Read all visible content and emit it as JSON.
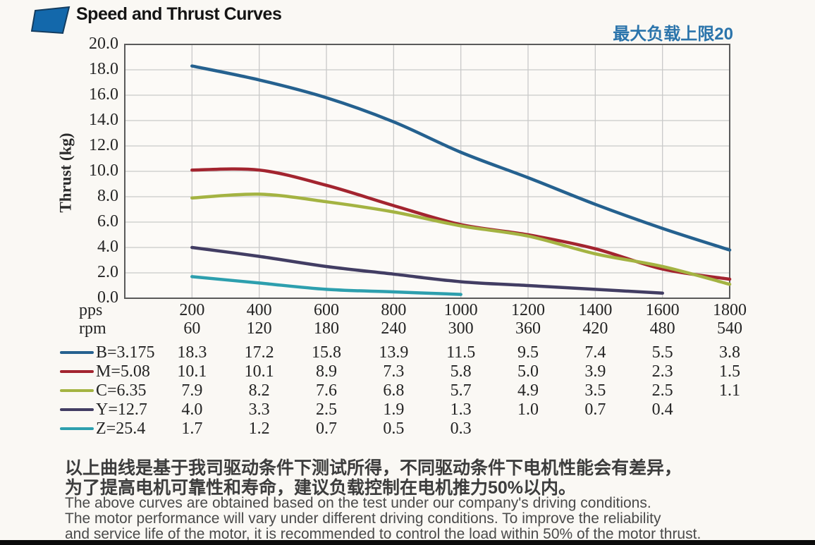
{
  "header": {
    "title": "Speed and Thrust Curves",
    "max_load_note": "最大负载上限20"
  },
  "chart_data": {
    "type": "line",
    "title": "Speed and Thrust Curves",
    "ylabel": "Thrust (kg)",
    "ylim": [
      0,
      20
    ],
    "y_tick_step": 2,
    "grid": true,
    "legend_position": "table-below",
    "x_axis": {
      "pps_label": "pps",
      "rpm_label": "rpm",
      "xlim": [
        0,
        1800
      ],
      "pps": [
        200,
        400,
        600,
        800,
        1000,
        1200,
        1400,
        1600,
        1800
      ],
      "rpm": [
        60,
        120,
        180,
        240,
        300,
        360,
        420,
        480,
        540
      ]
    },
    "series": [
      {
        "name": "B=3.175",
        "color": "#25618f",
        "values": [
          18.3,
          17.2,
          15.8,
          13.9,
          11.5,
          9.5,
          7.4,
          5.5,
          3.8
        ]
      },
      {
        "name": "M=5.08",
        "color": "#a3242f",
        "values": [
          10.1,
          10.1,
          8.9,
          7.3,
          5.8,
          5.0,
          3.9,
          2.3,
          1.5
        ]
      },
      {
        "name": "C=6.35",
        "color": "#a4b342",
        "values": [
          7.9,
          8.2,
          7.6,
          6.8,
          5.7,
          4.9,
          3.5,
          2.5,
          1.1
        ]
      },
      {
        "name": "Y=12.7",
        "color": "#423d63",
        "values": [
          4.0,
          3.3,
          2.5,
          1.9,
          1.3,
          1.0,
          0.7,
          0.4,
          null
        ]
      },
      {
        "name": "Z=25.4",
        "color": "#2d9fae",
        "values": [
          1.7,
          1.2,
          0.7,
          0.5,
          0.3,
          null,
          null,
          null,
          null
        ]
      }
    ]
  },
  "footer": {
    "cn_line1": "以上曲线是基于我司驱动条件下测试所得，不同驱动条件下电机性能会有差异，",
    "cn_line2": "为了提高电机可靠性和寿命，建议负载控制在电机推力50%以内。",
    "en_line1": "The above curves are obtained based on the test under our company's driving conditions.",
    "en_line2": "The motor performance will vary under different driving conditions. To improve the reliability",
    "en_line3": "and service life of the motor, it is recommended to control the load within 50% of the motor thrust."
  },
  "colors": {
    "accent_blue": "#1368ab",
    "grid": "#c9c9c9",
    "plot_border": "#5a5a5a",
    "background": "#faf8f4"
  }
}
